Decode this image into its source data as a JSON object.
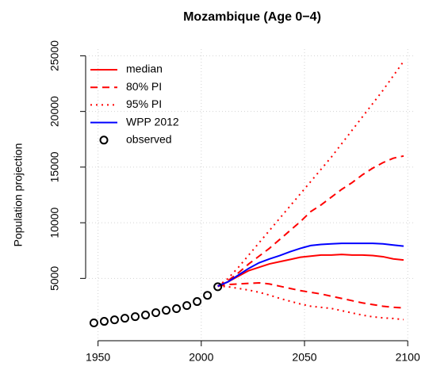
{
  "chart_data": {
    "type": "line",
    "title": "Mozambique (Age 0−4)",
    "ylabel": "Population projection",
    "xlim": [
      1944,
      2103
    ],
    "ylim": [
      -600,
      25600
    ],
    "xticks": [
      1950,
      2000,
      2050,
      2100
    ],
    "yticks": [
      5000,
      10000,
      15000,
      20000,
      25000
    ],
    "grid": true,
    "legend": "top-left",
    "x": [
      2008,
      2013,
      2018,
      2023,
      2028,
      2033,
      2038,
      2043,
      2048,
      2053,
      2058,
      2063,
      2068,
      2073,
      2078,
      2083,
      2088,
      2093,
      2098
    ],
    "series": [
      {
        "name": "median",
        "color": "#ff0000",
        "linestyle": "solid",
        "values": [
          4300,
          4700,
          5200,
          5700,
          6000,
          6300,
          6500,
          6700,
          6900,
          7000,
          7100,
          7100,
          7150,
          7100,
          7100,
          7050,
          6950,
          6750,
          6650
        ]
      },
      {
        "name": "80% PI",
        "color": "#ff0000",
        "linestyle": "dashed",
        "values": [
          4300,
          4800,
          5500,
          6300,
          7000,
          7700,
          8500,
          9300,
          10100,
          11000,
          11600,
          12300,
          13000,
          13600,
          14300,
          14900,
          15400,
          15800,
          16000
        ],
        "lower": [
          4300,
          4450,
          4500,
          4550,
          4600,
          4500,
          4300,
          4100,
          3900,
          3750,
          3600,
          3400,
          3200,
          3000,
          2800,
          2650,
          2500,
          2400,
          2350
        ]
      },
      {
        "name": "95% PI",
        "color": "#ff0000",
        "linestyle": "dotted",
        "values": [
          4300,
          5000,
          6000,
          7100,
          8200,
          9300,
          10400,
          11500,
          12600,
          13700,
          14800,
          15900,
          17100,
          18300,
          19500,
          20700,
          21900,
          23200,
          24500
        ],
        "lower": [
          4300,
          4250,
          4100,
          3950,
          3750,
          3500,
          3200,
          2950,
          2700,
          2500,
          2400,
          2300,
          2100,
          1900,
          1700,
          1550,
          1450,
          1400,
          1300
        ]
      },
      {
        "name": "WPP 2012",
        "color": "#0000ff",
        "linestyle": "solid",
        "values": [
          4300,
          4700,
          5300,
          5900,
          6400,
          6750,
          7050,
          7400,
          7700,
          7950,
          8050,
          8100,
          8150,
          8150,
          8150,
          8150,
          8100,
          8000,
          7900
        ]
      },
      {
        "name": "observed",
        "color": "#000000",
        "linestyle": "points",
        "x": [
          1948,
          1953,
          1958,
          1963,
          1968,
          1973,
          1978,
          1983,
          1988,
          1993,
          1998,
          2003,
          2008
        ],
        "values": [
          1000,
          1140,
          1280,
          1420,
          1560,
          1710,
          1920,
          2130,
          2280,
          2560,
          2920,
          3480,
          4250
        ]
      }
    ]
  }
}
